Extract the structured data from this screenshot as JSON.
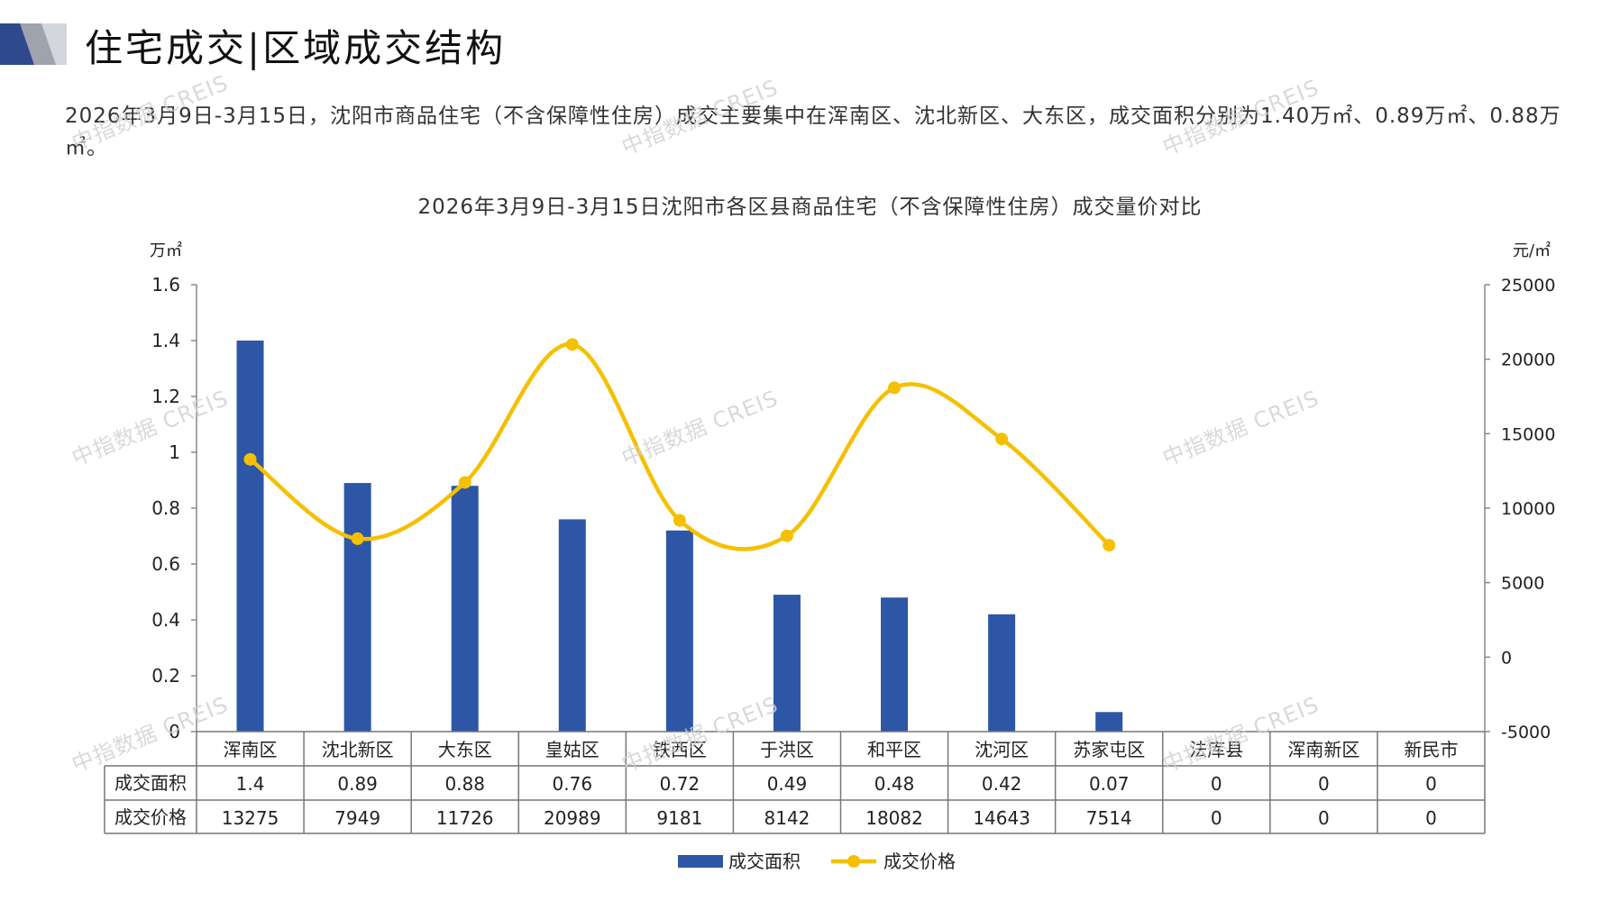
{
  "header": {
    "title": "住宅成交|区域成交结构"
  },
  "summary": "2026年3月9日-3月15日，沈阳市商品住宅（不含保障性住房）成交主要集中在浑南区、沈北新区、大东区，成交面积分别为1.40万㎡、0.89万㎡、0.88万㎡。",
  "watermark": "中指数据 CREIS",
  "colors": {
    "bar": "#2e56a6",
    "line": "#f5c000",
    "grid": "#888888",
    "accent_dark": "#2e4a8c",
    "accent_light": "#c7c9ce"
  },
  "chart_data": {
    "type": "bar",
    "title": "2026年3月9日-3月15日沈阳市各区县商品住宅（不含保障性住房）成交量价对比",
    "left_unit": "万㎡",
    "right_unit": "元/㎡",
    "categories": [
      "浑南区",
      "沈北新区",
      "大东区",
      "皇姑区",
      "铁西区",
      "于洪区",
      "和平区",
      "沈河区",
      "苏家屯区",
      "法库县",
      "浑南新区",
      "新民市"
    ],
    "series": [
      {
        "name": "成交面积",
        "type": "bar",
        "axis": "left",
        "values": [
          1.4,
          0.89,
          0.88,
          0.76,
          0.72,
          0.49,
          0.48,
          0.42,
          0.07,
          0,
          0,
          0
        ],
        "labels": [
          "1.4",
          "0.89",
          "0.88",
          "0.76",
          "0.72",
          "0.49",
          "0.48",
          "0.42",
          "0.07",
          "0",
          "0",
          "0"
        ]
      },
      {
        "name": "成交价格",
        "type": "line",
        "axis": "right",
        "values": [
          13275,
          7949,
          11726,
          20989,
          9181,
          8142,
          18082,
          14643,
          7514,
          0,
          0,
          0
        ],
        "labels": [
          "13275",
          "7949",
          "11726",
          "20989",
          "9181",
          "8142",
          "18082",
          "14643",
          "7514",
          "0",
          "0",
          "0"
        ],
        "plotted_points": 9
      }
    ],
    "left_ticks": [
      "0",
      "0.2",
      "0.4",
      "0.6",
      "0.8",
      "1",
      "1.2",
      "1.4",
      "1.6"
    ],
    "right_ticks": [
      "-5000",
      "0",
      "5000",
      "10000",
      "15000",
      "20000",
      "25000"
    ],
    "ylim_left": [
      0,
      1.6
    ],
    "ylim_right": [
      -5000,
      25000
    ],
    "grid": false,
    "legend_position": "bottom",
    "data_table": true
  }
}
